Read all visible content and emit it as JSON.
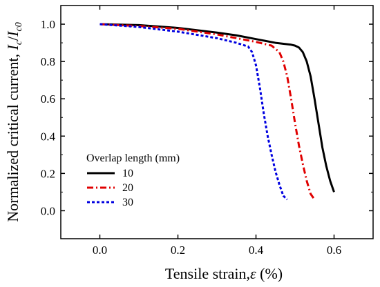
{
  "chart_data": {
    "type": "line",
    "title": "",
    "xlabel": "Tensile strain,",
    "xlabel_symbol": "ε",
    "xlabel_unit": " (%)",
    "ylabel": "Normalized critical current, ",
    "ylabel_symbol": "I",
    "ylabel_sub1": "c",
    "ylabel_slash": "/",
    "ylabel_symbol2": "I",
    "ylabel_sub2": "c0",
    "xlim": [
      -0.1,
      0.7
    ],
    "ylim": [
      -0.15,
      1.1
    ],
    "xticks": [
      0.0,
      0.2,
      0.4,
      0.6
    ],
    "xtick_labels": [
      "0.0",
      "0.2",
      "0.4",
      "0.6"
    ],
    "yticks": [
      0.0,
      0.2,
      0.4,
      0.6,
      0.8,
      1.0
    ],
    "ytick_labels": [
      "0.0",
      "0.2",
      "0.4",
      "0.6",
      "0.8",
      "1.0"
    ],
    "legend": {
      "title": "Overlap length (mm)",
      "position": "lower-left"
    },
    "series": [
      {
        "name": "10",
        "color": "#000000",
        "dash": "solid",
        "x": [
          0.0,
          0.1,
          0.2,
          0.3,
          0.35,
          0.4,
          0.45,
          0.49,
          0.5,
          0.51,
          0.52,
          0.53,
          0.54,
          0.55,
          0.56,
          0.57,
          0.58,
          0.59,
          0.6
        ],
        "y": [
          1.0,
          0.995,
          0.98,
          0.955,
          0.94,
          0.92,
          0.9,
          0.89,
          0.885,
          0.875,
          0.85,
          0.8,
          0.72,
          0.6,
          0.47,
          0.34,
          0.24,
          0.16,
          0.1
        ]
      },
      {
        "name": "20",
        "color": "#e00000",
        "dash": "dash-dot",
        "x": [
          0.0,
          0.1,
          0.2,
          0.3,
          0.35,
          0.4,
          0.44,
          0.46,
          0.47,
          0.48,
          0.49,
          0.5,
          0.51,
          0.52,
          0.53,
          0.54,
          0.55
        ],
        "y": [
          1.0,
          0.99,
          0.975,
          0.945,
          0.925,
          0.905,
          0.885,
          0.85,
          0.8,
          0.72,
          0.6,
          0.47,
          0.35,
          0.25,
          0.16,
          0.09,
          0.06
        ]
      },
      {
        "name": "30",
        "color": "#0000e0",
        "dash": "dotted",
        "x": [
          0.0,
          0.1,
          0.2,
          0.3,
          0.35,
          0.38,
          0.39,
          0.4,
          0.41,
          0.42,
          0.43,
          0.44,
          0.45,
          0.46,
          0.47,
          0.48
        ],
        "y": [
          1.0,
          0.985,
          0.96,
          0.925,
          0.9,
          0.88,
          0.85,
          0.78,
          0.66,
          0.52,
          0.4,
          0.3,
          0.21,
          0.14,
          0.08,
          0.06
        ]
      }
    ]
  }
}
